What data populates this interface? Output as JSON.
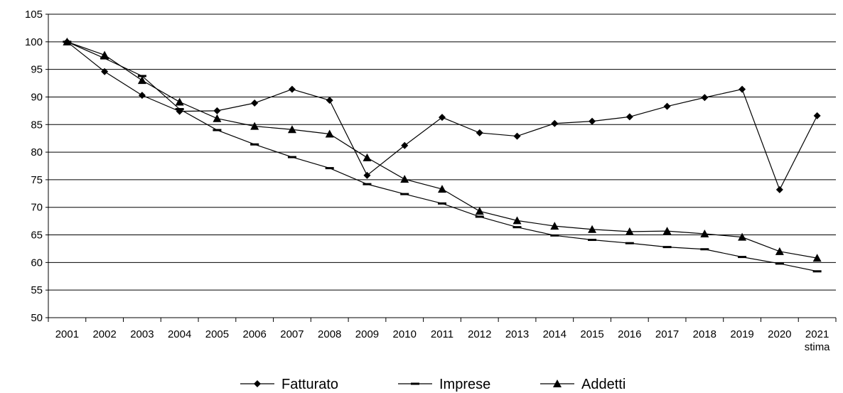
{
  "chart_data": {
    "type": "line",
    "categories": [
      "2001",
      "2002",
      "2003",
      "2004",
      "2005",
      "2006",
      "2007",
      "2008",
      "2009",
      "2010",
      "2011",
      "2012",
      "2013",
      "2014",
      "2015",
      "2016",
      "2017",
      "2018",
      "2019",
      "2020",
      "2021"
    ],
    "category_sublabels": {
      "2021": "stima"
    },
    "ylim": [
      50,
      105
    ],
    "yticks": [
      "50",
      "55",
      "60",
      "65",
      "70",
      "75",
      "80",
      "85",
      "90",
      "95",
      "100",
      "105"
    ],
    "grid": "horizontal",
    "legend_position": "bottom",
    "series": [
      {
        "name": "Fatturato",
        "marker": "diamond",
        "values": [
          100,
          94.6,
          90.3,
          87.4,
          87.5,
          88.9,
          91.4,
          89.4,
          75.8,
          81.2,
          86.3,
          83.5,
          82.9,
          85.2,
          85.6,
          86.4,
          88.3,
          89.9,
          91.4,
          73.2,
          86.6
        ]
      },
      {
        "name": "Imprese",
        "marker": "dash",
        "values": [
          100,
          97.0,
          93.8,
          87.8,
          84.0,
          81.4,
          79.1,
          77.1,
          74.2,
          72.4,
          70.7,
          68.3,
          66.4,
          64.9,
          64.1,
          63.5,
          62.8,
          62.4,
          61.0,
          59.8,
          58.4
        ]
      },
      {
        "name": "Addetti",
        "marker": "triangle",
        "values": [
          100,
          97.6,
          93.0,
          89.1,
          86.1,
          84.7,
          84.1,
          83.3,
          79.0,
          75.1,
          73.3,
          69.3,
          67.6,
          66.6,
          66.0,
          65.6,
          65.7,
          65.2,
          64.6,
          62.0,
          60.8
        ]
      }
    ]
  }
}
